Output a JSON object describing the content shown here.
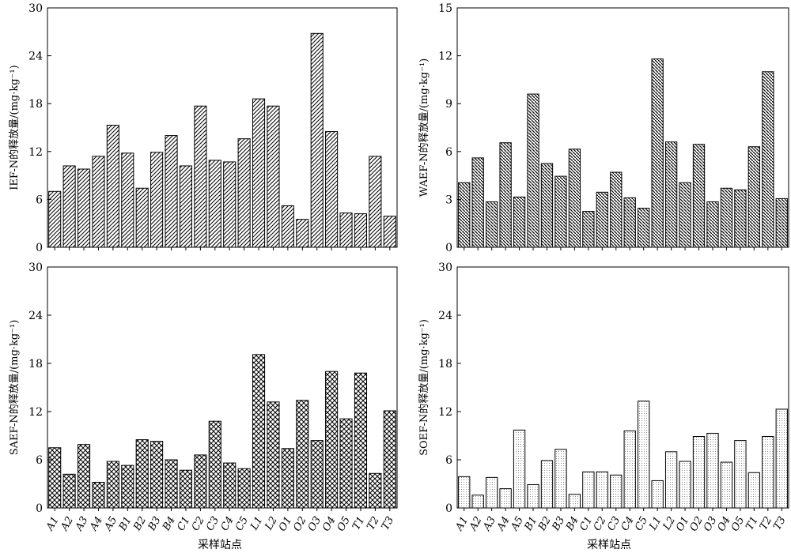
{
  "figure": {
    "xlabel": "采样站点",
    "categories": [
      "A1",
      "A2",
      "A3",
      "A4",
      "A5",
      "B1",
      "B2",
      "B3",
      "B4",
      "C1",
      "C2",
      "C3",
      "C4",
      "C5",
      "L1",
      "L2",
      "O1",
      "O2",
      "O3",
      "O4",
      "O5",
      "T1",
      "T2",
      "T3"
    ]
  },
  "chart_data": [
    {
      "type": "bar",
      "ylabel": "IEF-N的释放量/(mg·kg⁻¹)",
      "ylim": [
        0,
        30
      ],
      "yticks": [
        0,
        6,
        12,
        18,
        24,
        30
      ],
      "values": [
        7.0,
        10.2,
        9.8,
        11.4,
        15.3,
        11.8,
        7.4,
        11.9,
        14.0,
        10.2,
        17.7,
        10.9,
        10.7,
        13.6,
        18.6,
        17.7,
        5.2,
        3.5,
        26.8,
        14.5,
        4.3,
        4.2,
        11.4,
        3.9
      ],
      "pattern": "diag-right",
      "grid": false
    },
    {
      "type": "bar",
      "ylabel": "WAEF-N的释放量/(mg·kg⁻¹)",
      "ylim": [
        0,
        15
      ],
      "yticks": [
        0,
        3,
        6,
        9,
        12,
        15
      ],
      "values": [
        4.05,
        5.6,
        2.85,
        6.55,
        3.15,
        9.6,
        5.25,
        4.45,
        6.15,
        2.25,
        3.45,
        4.7,
        3.1,
        2.45,
        11.8,
        6.6,
        4.05,
        6.45,
        2.85,
        3.7,
        3.6,
        6.3,
        11.0,
        3.05
      ],
      "pattern": "diag-left",
      "grid": false
    },
    {
      "type": "bar",
      "ylabel": "SAEF-N的释放量/(mg·kg⁻¹)",
      "ylim": [
        0,
        30
      ],
      "yticks": [
        0,
        6,
        12,
        18,
        24,
        30
      ],
      "values": [
        7.5,
        4.2,
        7.9,
        3.2,
        5.8,
        5.3,
        8.5,
        8.3,
        6.0,
        4.7,
        6.6,
        10.8,
        5.6,
        4.9,
        19.1,
        13.2,
        7.4,
        13.4,
        8.4,
        17.0,
        11.1,
        16.8,
        4.3,
        12.1
      ],
      "pattern": "cross",
      "grid": false
    },
    {
      "type": "bar",
      "ylabel": "SOEF-N的释放量/(mg·kg⁻¹)",
      "ylim": [
        0,
        30
      ],
      "yticks": [
        0,
        6,
        12,
        18,
        24,
        30
      ],
      "values": [
        3.9,
        1.6,
        3.8,
        2.4,
        9.7,
        2.9,
        5.9,
        7.3,
        1.7,
        4.5,
        4.5,
        4.1,
        9.6,
        13.3,
        3.4,
        7.0,
        5.8,
        8.9,
        9.3,
        5.7,
        8.4,
        4.4,
        8.9,
        12.3
      ],
      "pattern": "dots",
      "grid": false
    }
  ]
}
